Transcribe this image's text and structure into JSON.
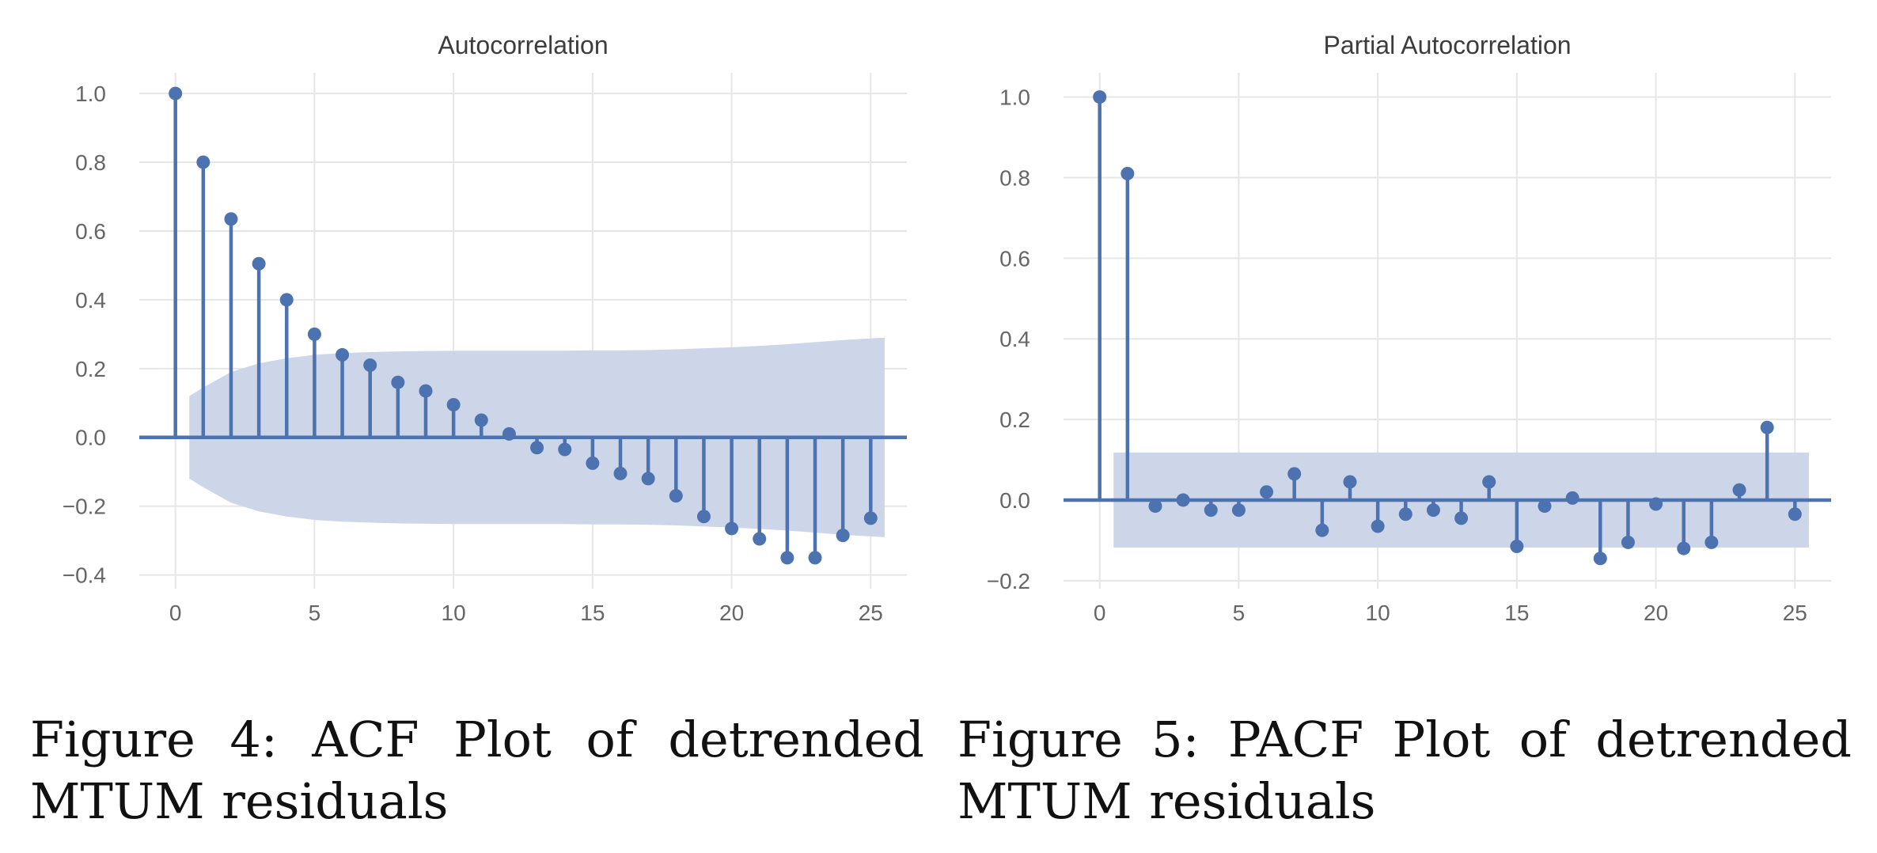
{
  "chart_data": [
    {
      "type": "stem",
      "title": "Autocorrelation",
      "xlabel": "",
      "ylabel": "",
      "xlim": [
        -1.3,
        26.3
      ],
      "ylim": [
        -0.44,
        1.06
      ],
      "x_ticks": [
        0,
        5,
        10,
        15,
        20,
        25
      ],
      "y_ticks": [
        1.0,
        0.8,
        0.6,
        0.4,
        0.2,
        0.0,
        -0.2,
        -0.4
      ],
      "y_tick_labels": [
        "1.0",
        "0.8",
        "0.6",
        "0.4",
        "0.2",
        "0.0",
        "−0.2",
        "−0.4"
      ],
      "grid": true,
      "lags": [
        0,
        1,
        2,
        3,
        4,
        5,
        6,
        7,
        8,
        9,
        10,
        11,
        12,
        13,
        14,
        15,
        16,
        17,
        18,
        19,
        20,
        21,
        22,
        23,
        24,
        25
      ],
      "values": [
        1.0,
        0.8,
        0.635,
        0.505,
        0.4,
        0.3,
        0.24,
        0.21,
        0.16,
        0.135,
        0.095,
        0.05,
        0.01,
        -0.03,
        -0.035,
        -0.075,
        -0.105,
        -0.12,
        -0.17,
        -0.23,
        -0.265,
        -0.295,
        -0.35,
        -0.35,
        -0.285,
        -0.235
      ],
      "confidence_band": {
        "x": [
          0.5,
          1,
          2,
          3,
          4,
          5,
          6,
          7,
          8,
          9,
          10,
          11,
          12,
          13,
          14,
          15,
          16,
          17,
          18,
          19,
          20,
          21,
          22,
          23,
          24,
          25,
          25.5
        ],
        "upper": [
          0.12,
          0.145,
          0.19,
          0.215,
          0.23,
          0.24,
          0.245,
          0.248,
          0.25,
          0.251,
          0.252,
          0.252,
          0.252,
          0.252,
          0.252,
          0.253,
          0.253,
          0.254,
          0.256,
          0.259,
          0.262,
          0.266,
          0.271,
          0.277,
          0.283,
          0.288,
          0.29
        ]
      },
      "colors": {
        "stem": "#4c72b0",
        "band": "#ccd6e8",
        "grid": "#e6e6e6"
      }
    },
    {
      "type": "stem",
      "title": "Partial Autocorrelation",
      "xlabel": "",
      "ylabel": "",
      "xlim": [
        -1.3,
        26.3
      ],
      "ylim": [
        -0.22,
        1.06
      ],
      "x_ticks": [
        0,
        5,
        10,
        15,
        20,
        25
      ],
      "y_ticks": [
        1.0,
        0.8,
        0.6,
        0.4,
        0.2,
        0.0,
        -0.2
      ],
      "y_tick_labels": [
        "1.0",
        "0.8",
        "0.6",
        "0.4",
        "0.2",
        "0.0",
        "−0.2"
      ],
      "grid": true,
      "lags": [
        0,
        1,
        2,
        3,
        4,
        5,
        6,
        7,
        8,
        9,
        10,
        11,
        12,
        13,
        14,
        15,
        16,
        17,
        18,
        19,
        20,
        21,
        22,
        23,
        24,
        25
      ],
      "values": [
        1.0,
        0.81,
        -0.015,
        0.0,
        -0.025,
        -0.025,
        0.02,
        0.065,
        -0.075,
        0.045,
        -0.065,
        -0.035,
        -0.025,
        -0.045,
        0.045,
        -0.115,
        -0.015,
        0.005,
        -0.145,
        -0.105,
        -0.01,
        -0.12,
        -0.105,
        0.025,
        0.18,
        -0.035
      ],
      "confidence_band": {
        "x": [
          0.5,
          25.5
        ],
        "upper": [
          0.118,
          0.118
        ]
      },
      "colors": {
        "stem": "#4c72b0",
        "band": "#ccd6e8",
        "grid": "#e6e6e6"
      }
    }
  ],
  "captions": {
    "acf": [
      "Figure 4:  ACF Plot of detrended",
      "MTUM residuals"
    ],
    "pacf": [
      "Figure 5:  PACF Plot of detrended",
      "MTUM residuals"
    ]
  }
}
